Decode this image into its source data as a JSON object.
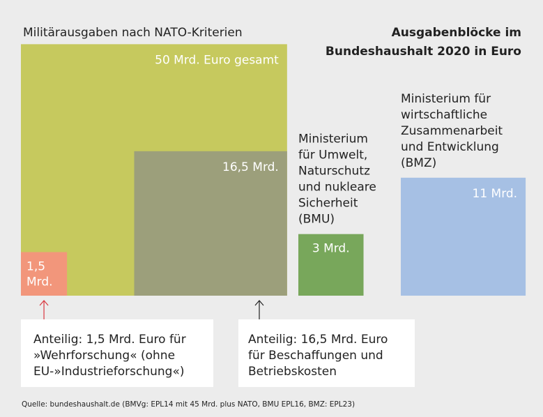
{
  "chart_data": {
    "type": "squares",
    "title": [
      "Ausgabenblöcke im",
      "Bundeshaushalt 2020 in Euro"
    ],
    "subtitle": "Militärausgaben nach NATO-Kriterien",
    "values": [
      50,
      16.5,
      1.5,
      3,
      11
    ],
    "value_labels": [
      "50 Mrd. Euro gesamt",
      "16,5 Mrd.",
      [
        "1,5",
        "Mrd."
      ],
      "3 Mrd.",
      "11 Mrd."
    ],
    "colors": [
      "#c6c95e",
      "#9c9f7b",
      "#f2967b",
      "#78a75b",
      "#a6c0e4"
    ],
    "ministries": [
      [
        "Ministerium",
        "für Umwelt,",
        "Naturschutz",
        "und nukleare",
        "Sicherheit",
        "(BMU)"
      ],
      [
        "Ministerium für",
        "wirtschaftliche",
        "Zusammenarbeit",
        "und Entwicklung",
        "(BMZ)"
      ]
    ],
    "annotations": [
      [
        "Anteilig: 1,5 Mrd. Euro für",
        "»Wehrforschung« (ohne",
        "EU-»Industrieforschung«)"
      ],
      [
        "Anteilig: 16,5 Mrd. Euro",
        "für Beschaffungen und",
        "Betriebskosten"
      ]
    ],
    "source": "Quelle: bundeshaushalt.de (BMVg: EPL14 mit 45 Mrd. plus NATO, BMU EPL16, BMZ: EPL23)"
  }
}
